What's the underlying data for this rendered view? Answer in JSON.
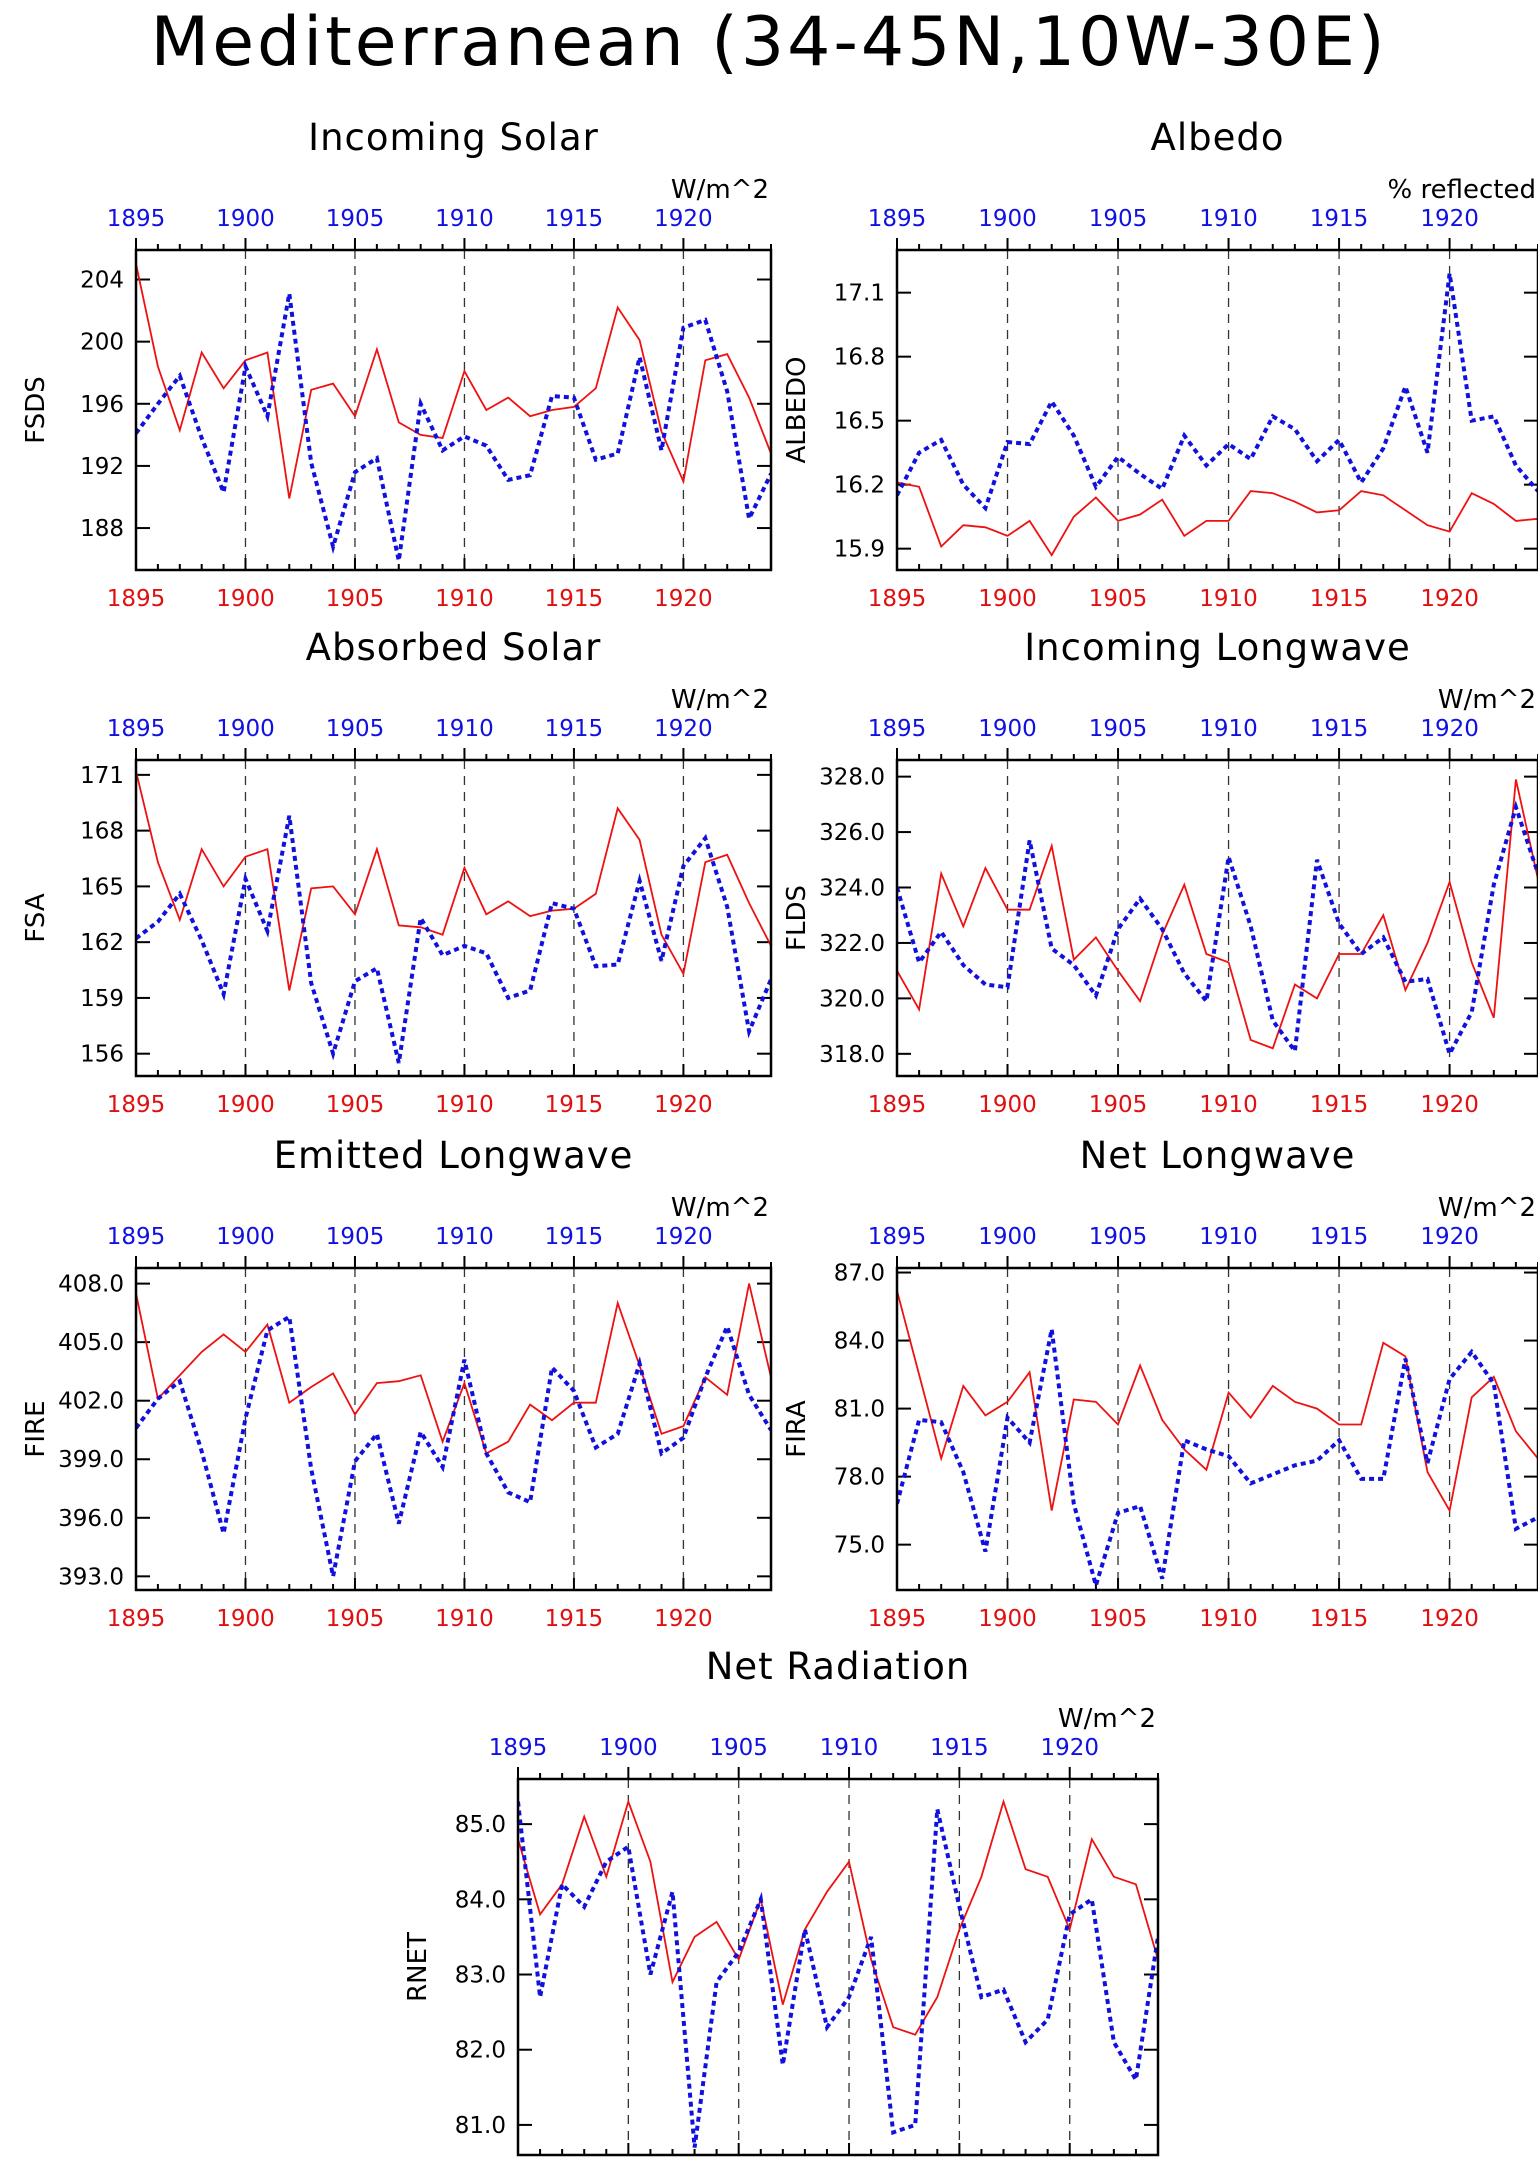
{
  "title": "Mediterranean (34-45N,10W-30E)",
  "colors": {
    "red_series": "#ee1111",
    "blue_series": "#1111dd",
    "axis": "#000000",
    "top_ticks": "#1010e0",
    "bottom_ticks": "#e01010"
  },
  "chart_data": [
    {
      "type": "line",
      "title": "Incoming Solar",
      "units": "W/m^2",
      "ylabel": "FSDS",
      "xlim": [
        1895,
        1924
      ],
      "ylim": [
        185.3,
        205.9
      ],
      "yticks": [
        188,
        192,
        196,
        200,
        204
      ],
      "ytick_labels": [
        "188",
        "192",
        "196",
        "200",
        "204"
      ],
      "xticks": [
        1895,
        1900,
        1905,
        1910,
        1915,
        1920
      ],
      "x_start": 1895,
      "series": [
        {
          "color": "red",
          "style": "solid",
          "values": [
            205.0,
            198.4,
            194.3,
            199.3,
            197.0,
            198.8,
            199.3,
            189.9,
            196.9,
            197.3,
            195.2,
            199.5,
            194.8,
            194.0,
            193.8,
            198.1,
            195.6,
            196.4,
            195.2,
            195.6,
            195.8,
            197.0,
            202.2,
            200.1,
            194.2,
            191.0,
            198.8,
            199.2,
            196.4,
            192.8
          ]
        },
        {
          "color": "blue",
          "style": "dotted",
          "values": [
            194.1,
            196.0,
            197.8,
            193.8,
            190.3,
            198.4,
            195.2,
            203.1,
            192.2,
            186.8,
            191.6,
            192.5,
            185.9,
            196.0,
            193.0,
            193.9,
            193.3,
            191.1,
            191.4,
            196.5,
            196.4,
            192.4,
            192.8,
            199.0,
            193.0,
            200.9,
            201.4,
            196.8,
            188.6,
            191.5
          ]
        }
      ]
    },
    {
      "type": "line",
      "title": "Albedo",
      "units": "% reflected",
      "ylabel": "ALBEDO",
      "xlim": [
        1895,
        1924
      ],
      "ylim": [
        15.8,
        17.3
      ],
      "yticks": [
        15.9,
        16.2,
        16.5,
        16.8,
        17.1
      ],
      "ytick_labels": [
        "15.9",
        "16.2",
        "16.5",
        "16.8",
        "17.1"
      ],
      "xticks": [
        1895,
        1900,
        1905,
        1910,
        1915,
        1920
      ],
      "x_start": 1895,
      "series": [
        {
          "color": "red",
          "style": "solid",
          "values": [
            16.21,
            16.19,
            15.91,
            16.01,
            16.0,
            15.96,
            16.03,
            15.87,
            16.05,
            16.14,
            16.03,
            16.06,
            16.13,
            15.96,
            16.03,
            16.03,
            16.17,
            16.16,
            16.12,
            16.07,
            16.08,
            16.17,
            16.15,
            16.08,
            16.01,
            15.98,
            16.16,
            16.11,
            16.03,
            16.04
          ]
        },
        {
          "color": "blue",
          "style": "dotted",
          "values": [
            16.15,
            16.35,
            16.41,
            16.2,
            16.09,
            16.4,
            16.39,
            16.59,
            16.43,
            16.19,
            16.33,
            16.25,
            16.18,
            16.43,
            16.29,
            16.39,
            16.32,
            16.52,
            16.46,
            16.31,
            16.41,
            16.21,
            16.37,
            16.66,
            16.35,
            17.19,
            16.5,
            16.52,
            16.29,
            16.17
          ]
        }
      ]
    },
    {
      "type": "line",
      "title": "Absorbed Solar",
      "units": "W/m^2",
      "ylabel": "FSA",
      "xlim": [
        1895,
        1924
      ],
      "ylim": [
        154.8,
        171.8
      ],
      "yticks": [
        156,
        159,
        162,
        165,
        168,
        171
      ],
      "ytick_labels": [
        "156",
        "159",
        "162",
        "165",
        "168",
        "171"
      ],
      "xticks": [
        1895,
        1900,
        1905,
        1910,
        1915,
        1920
      ],
      "x_start": 1895,
      "series": [
        {
          "color": "red",
          "style": "solid",
          "values": [
            171.2,
            166.3,
            163.2,
            167.0,
            165.0,
            166.6,
            167.0,
            159.4,
            164.9,
            165.0,
            163.5,
            167.0,
            162.9,
            162.8,
            162.4,
            166.0,
            163.5,
            164.2,
            163.4,
            163.7,
            163.8,
            164.6,
            169.2,
            167.5,
            162.4,
            160.3,
            166.3,
            166.7,
            164.1,
            161.8
          ]
        },
        {
          "color": "blue",
          "style": "dotted",
          "values": [
            162.2,
            163.1,
            164.6,
            162.1,
            159.2,
            165.4,
            162.6,
            168.8,
            159.8,
            156.0,
            159.9,
            160.6,
            155.5,
            163.3,
            161.3,
            161.8,
            161.4,
            159.0,
            159.4,
            164.1,
            163.8,
            160.7,
            160.8,
            165.3,
            161.0,
            166.1,
            167.6,
            163.9,
            157.2,
            160.0
          ]
        }
      ]
    },
    {
      "type": "line",
      "title": "Incoming Longwave",
      "units": "W/m^2",
      "ylabel": "FLDS",
      "xlim": [
        1895,
        1924
      ],
      "ylim": [
        317.2,
        328.6
      ],
      "yticks": [
        318.0,
        320.0,
        322.0,
        324.0,
        326.0,
        328.0
      ],
      "ytick_labels": [
        "318.0",
        "320.0",
        "322.0",
        "324.0",
        "326.0",
        "328.0"
      ],
      "xticks": [
        1895,
        1900,
        1905,
        1910,
        1915,
        1920
      ],
      "x_start": 1895,
      "series": [
        {
          "color": "red",
          "style": "solid",
          "values": [
            321.0,
            319.6,
            324.5,
            322.6,
            324.7,
            323.2,
            323.2,
            325.5,
            321.4,
            322.2,
            321.0,
            319.9,
            322.3,
            324.1,
            321.6,
            321.3,
            318.5,
            318.2,
            320.5,
            320.0,
            321.6,
            321.6,
            323.0,
            320.3,
            322.0,
            324.2,
            321.3,
            319.3,
            327.9,
            324.3
          ]
        },
        {
          "color": "blue",
          "style": "dotted",
          "values": [
            324.0,
            321.3,
            322.4,
            321.2,
            320.5,
            320.4,
            325.7,
            321.8,
            321.2,
            320.1,
            322.5,
            323.6,
            322.5,
            320.9,
            319.9,
            325.1,
            322.6,
            319.2,
            318.1,
            325.0,
            322.7,
            321.6,
            322.2,
            320.6,
            320.7,
            318.0,
            319.5,
            324.1,
            326.9,
            324.5
          ]
        }
      ]
    },
    {
      "type": "line",
      "title": "Emitted Longwave",
      "units": "W/m^2",
      "ylabel": "FIRE",
      "xlim": [
        1895,
        1924
      ],
      "ylim": [
        392.3,
        408.8
      ],
      "yticks": [
        393.0,
        396.0,
        399.0,
        402.0,
        405.0,
        408.0
      ],
      "ytick_labels": [
        "393.0",
        "396.0",
        "399.0",
        "402.0",
        "405.0",
        "408.0"
      ],
      "xticks": [
        1895,
        1900,
        1905,
        1910,
        1915,
        1920
      ],
      "x_start": 1895,
      "series": [
        {
          "color": "red",
          "style": "solid",
          "values": [
            407.5,
            402.1,
            403.3,
            404.5,
            405.4,
            404.5,
            405.9,
            401.9,
            402.7,
            403.4,
            401.3,
            402.9,
            403.0,
            403.3,
            399.9,
            402.9,
            399.3,
            399.9,
            401.8,
            401.0,
            401.9,
            401.9,
            407.0,
            403.8,
            400.3,
            400.7,
            403.2,
            402.3,
            408.0,
            403.2
          ]
        },
        {
          "color": "blue",
          "style": "dotted",
          "values": [
            400.6,
            402.1,
            403.0,
            399.4,
            395.2,
            401.1,
            405.6,
            406.3,
            398.5,
            393.0,
            398.9,
            400.3,
            395.7,
            400.4,
            398.6,
            404.1,
            399.3,
            397.3,
            396.8,
            403.7,
            402.5,
            399.6,
            400.3,
            403.9,
            399.3,
            400.1,
            403.2,
            405.8,
            402.3,
            400.5
          ]
        }
      ]
    },
    {
      "type": "line",
      "title": "Net Longwave",
      "units": "W/m^2",
      "ylabel": "FIRA",
      "xlim": [
        1895,
        1924
      ],
      "ylim": [
        73.0,
        87.2
      ],
      "yticks": [
        75.0,
        78.0,
        81.0,
        84.0,
        87.0
      ],
      "ytick_labels": [
        "75.0",
        "78.0",
        "81.0",
        "84.0",
        "87.0"
      ],
      "xticks": [
        1895,
        1900,
        1905,
        1910,
        1915,
        1920
      ],
      "x_start": 1895,
      "series": [
        {
          "color": "red",
          "style": "solid",
          "values": [
            86.2,
            82.5,
            78.8,
            82.0,
            80.7,
            81.3,
            82.6,
            76.5,
            81.4,
            81.3,
            80.3,
            82.9,
            80.5,
            79.2,
            78.3,
            81.7,
            80.6,
            82.0,
            81.3,
            81.0,
            80.3,
            80.3,
            83.9,
            83.3,
            78.2,
            76.5,
            81.5,
            82.4,
            80.0,
            78.8
          ]
        },
        {
          "color": "blue",
          "style": "dotted",
          "values": [
            76.8,
            80.5,
            80.4,
            78.2,
            74.7,
            80.6,
            79.5,
            84.5,
            76.8,
            73.2,
            76.4,
            76.7,
            73.5,
            79.6,
            79.2,
            78.9,
            77.7,
            78.1,
            78.5,
            78.7,
            79.6,
            77.9,
            77.9,
            83.2,
            78.6,
            82.3,
            83.5,
            82.1,
            75.7,
            76.2
          ]
        }
      ]
    },
    {
      "type": "line",
      "title": "Net Radiation",
      "units": "W/m^2",
      "ylabel": "RNET",
      "xlim": [
        1895,
        1924
      ],
      "ylim": [
        80.6,
        85.6
      ],
      "yticks": [
        81.0,
        82.0,
        83.0,
        84.0,
        85.0
      ],
      "ytick_labels": [
        "81.0",
        "82.0",
        "83.0",
        "84.0",
        "85.0"
      ],
      "xticks": [
        1895,
        1900,
        1905,
        1910,
        1915,
        1920
      ],
      "x_start": 1895,
      "series": [
        {
          "color": "red",
          "style": "solid",
          "values": [
            84.8,
            83.8,
            84.2,
            85.1,
            84.3,
            85.3,
            84.5,
            82.9,
            83.5,
            83.7,
            83.2,
            84.0,
            82.6,
            83.6,
            84.1,
            84.5,
            83.2,
            82.3,
            82.2,
            82.7,
            83.6,
            84.3,
            85.3,
            84.4,
            84.3,
            83.6,
            84.8,
            84.3,
            84.2,
            83.2
          ]
        },
        {
          "color": "blue",
          "style": "dotted",
          "values": [
            85.3,
            82.7,
            84.2,
            83.9,
            84.5,
            84.7,
            83.0,
            84.1,
            80.7,
            82.9,
            83.3,
            84.0,
            81.8,
            83.6,
            82.3,
            82.7,
            83.5,
            80.9,
            81.0,
            85.2,
            83.9,
            82.7,
            82.8,
            82.1,
            82.4,
            83.8,
            84.0,
            82.1,
            81.6,
            83.5
          ]
        }
      ]
    }
  ]
}
